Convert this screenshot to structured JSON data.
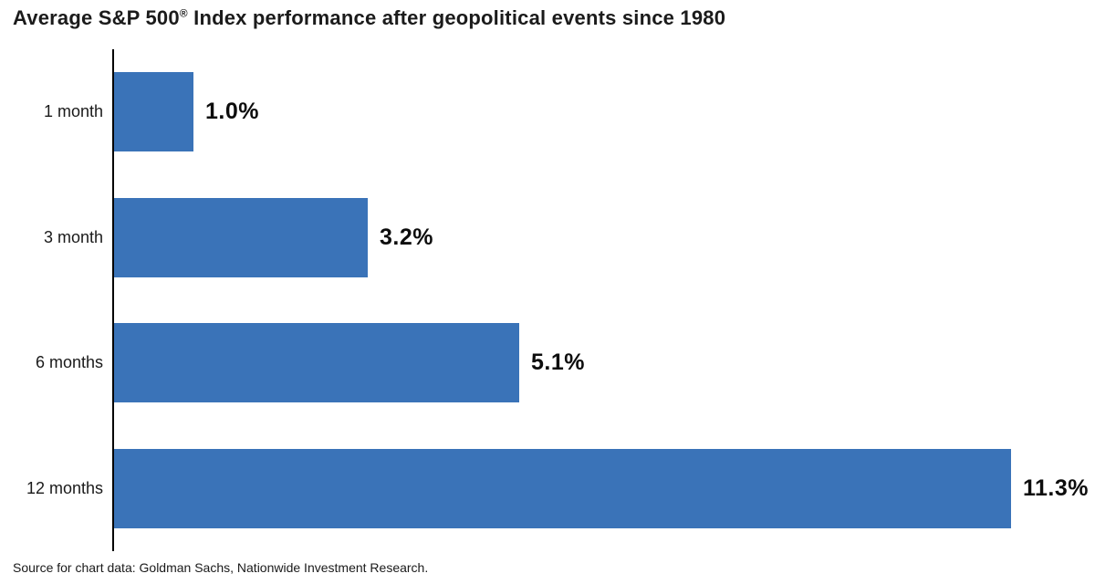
{
  "header": {
    "title_pre": "Average S&P 500",
    "title_reg": "®",
    "title_post": " Index performance after geopolitical events since 1980"
  },
  "source_note": "Source for chart data: Goldman Sachs, Nationwide Investment Research.",
  "colors": {
    "bar": "#3A73B8",
    "axis": "#000000",
    "text": "#1A1A1A"
  },
  "chart_data": {
    "type": "bar",
    "orientation": "horizontal",
    "title": "Average S&P 500® Index performance after geopolitical events since 1980",
    "categories": [
      "1 month",
      "3 month",
      "6 months",
      "12 months"
    ],
    "values": [
      1.0,
      3.2,
      5.1,
      11.3
    ],
    "value_labels": [
      "1.0%",
      "3.2%",
      "5.1%",
      "11.3%"
    ],
    "xlabel": "",
    "ylabel": "",
    "xlim": [
      0,
      12
    ],
    "grid": false,
    "legend": "none",
    "source": "Source for chart data: Goldman Sachs, Nationwide Investment Research."
  }
}
